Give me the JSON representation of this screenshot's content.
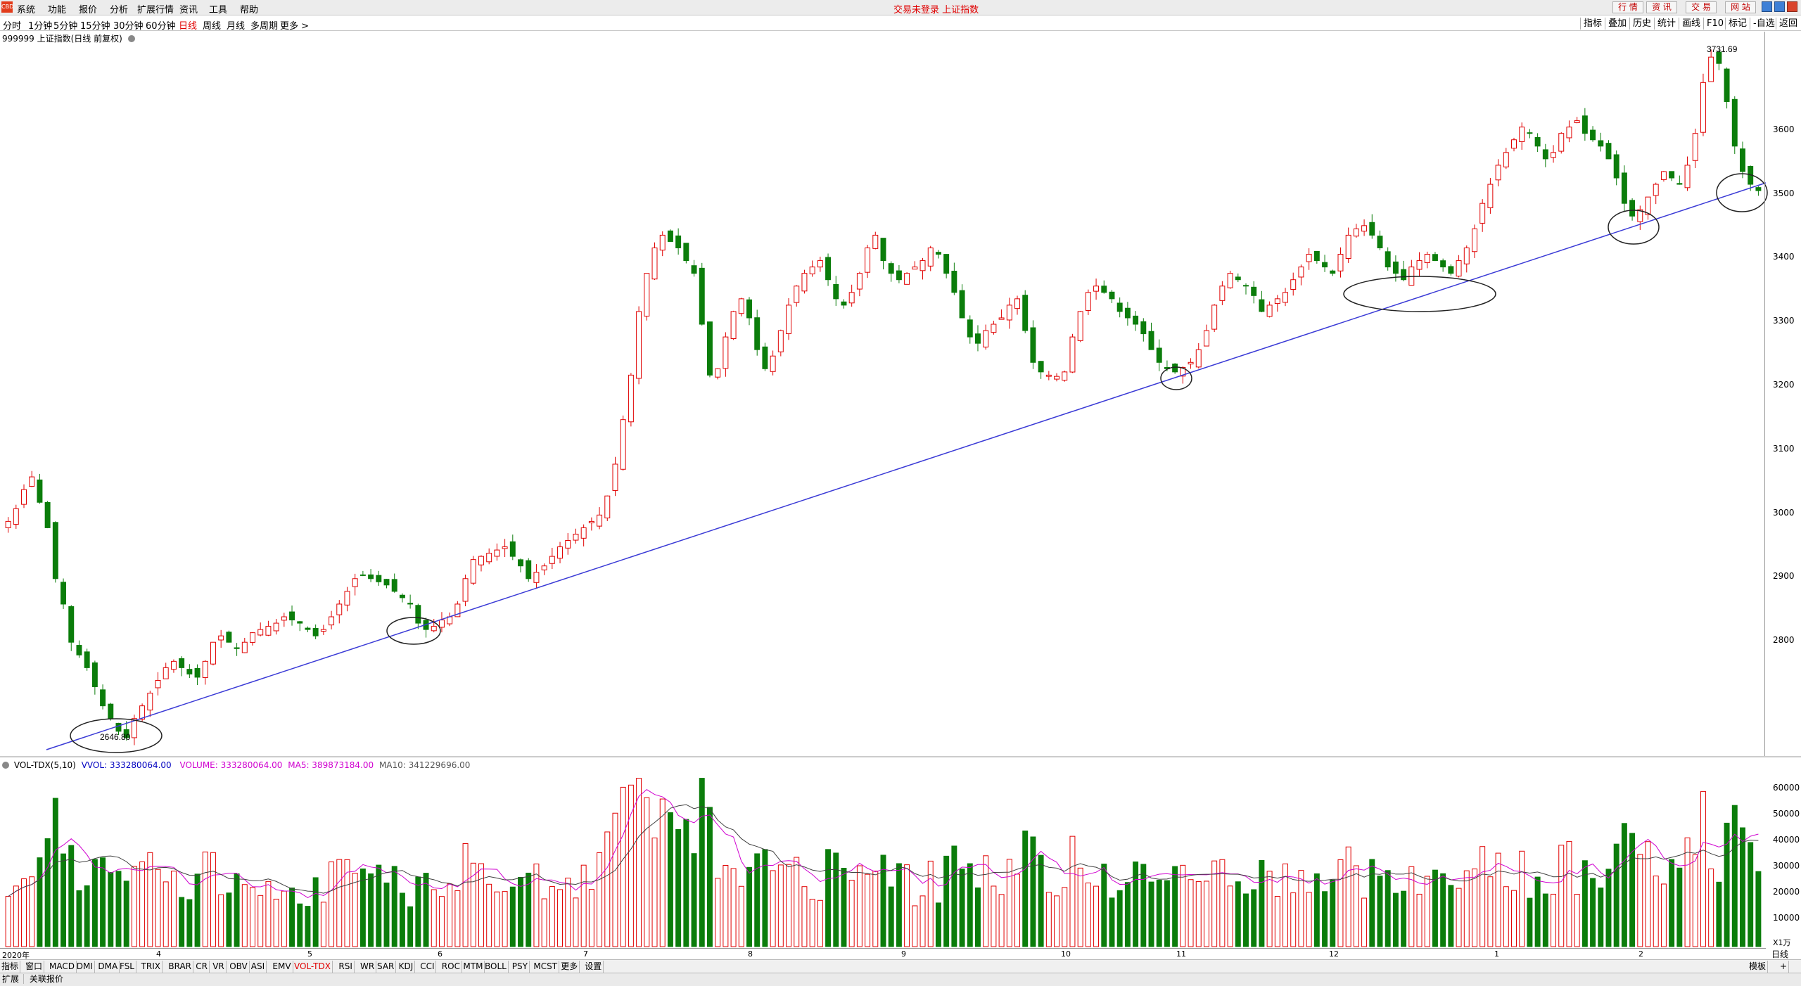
{
  "menu": {
    "logo": "CBD",
    "items": [
      "系统",
      "功能",
      "报价",
      "分析",
      "扩展行情",
      "资讯",
      "工具",
      "帮助"
    ],
    "title": "交易未登录  上证指数"
  },
  "topbuttons": [
    "行 情",
    "资 讯",
    "交 易",
    "网 站"
  ],
  "periods": [
    "分时",
    "1分钟",
    "5分钟",
    "15分钟",
    "30分钟",
    "60分钟",
    "日线",
    "周线",
    "月线",
    "多周期",
    "更多 >"
  ],
  "active_period": "日线",
  "rightbuttons": [
    "指标",
    "叠加",
    "历史",
    "统计",
    "画线",
    "F10",
    "标记",
    "-自选",
    "返回"
  ],
  "chart_title": "999999 上证指数(日线 前复权)",
  "high_label": "3731.69",
  "low_label": "2646.80",
  "price_ticks": [
    "3600",
    "3500",
    "3400",
    "3300",
    "3200",
    "3100",
    "3000",
    "2900",
    "2800"
  ],
  "vol_header": {
    "name": "VOL-TDX(5,10)",
    "vvol": "VVOL: 333280064.00",
    "volume": "VOLUME: 333280064.00",
    "ma5": "MA5: 389873184.00",
    "ma10": "MA10: 341229696.00"
  },
  "vol_ticks": [
    "60000",
    "50000",
    "40000",
    "30000",
    "20000",
    "10000"
  ],
  "vol_unit": "X1万",
  "time_labels": [
    "2020年",
    "4",
    "5",
    "6",
    "7",
    "8",
    "9",
    "10",
    "11",
    "12",
    "1",
    "2"
  ],
  "period_label": "日线",
  "tabs": [
    "指标",
    "窗口",
    "MACD",
    "DMI",
    "DMA",
    "FSL",
    "TRIX",
    "BRAR",
    "CR",
    "VR",
    "OBV",
    "ASI",
    "EMV",
    "VOL-TDX",
    "RSI",
    "WR",
    "SAR",
    "KDJ",
    "CCI",
    "ROC",
    "MTM",
    "BOLL",
    "PSY",
    "MCST",
    "更多",
    "设置"
  ],
  "active_tab": "VOL-TDX",
  "tab_right": [
    "模板",
    "+"
  ],
  "status": [
    "扩展",
    "关联报价"
  ],
  "colors": {
    "up": "#e00000",
    "down": "#0b7d0b",
    "trend": "#3b3bd6",
    "ma5": "#d000d0",
    "ma10": "#404040"
  },
  "chart_data": {
    "type": "candlestick",
    "ylim": [
      2620,
      3760
    ],
    "closes": [
      2990,
      3010,
      3040,
      3060,
      3020,
      2980,
      2900,
      2860,
      2800,
      2780,
      2760,
      2730,
      2700,
      2680,
      2660,
      2650,
      2680,
      2700,
      2720,
      2740,
      2760,
      2770,
      2760,
      2750,
      2745,
      2770,
      2800,
      2810,
      2800,
      2790,
      2800,
      2815,
      2820,
      2825,
      2830,
      2840,
      2835,
      2830,
      2820,
      2810,
      2820,
      2840,
      2860,
      2880,
      2900,
      2905,
      2900,
      2895,
      2890,
      2880,
      2870,
      2860,
      2830,
      2820,
      2825,
      2835,
      2840,
      2860,
      2900,
      2930,
      2935,
      2940,
      2945,
      2950,
      2935,
      2920,
      2900,
      2910,
      2920,
      2935,
      2950,
      2960,
      2970,
      2980,
      2990,
      3000,
      3030,
      3080,
      3150,
      3220,
      3320,
      3380,
      3420,
      3440,
      3430,
      3420,
      3400,
      3380,
      3300,
      3220,
      3230,
      3280,
      3320,
      3340,
      3310,
      3260,
      3230,
      3250,
      3290,
      3330,
      3360,
      3380,
      3390,
      3400,
      3370,
      3340,
      3330,
      3350,
      3380,
      3420,
      3440,
      3400,
      3380,
      3370,
      3380,
      3390,
      3400,
      3420,
      3410,
      3380,
      3350,
      3310,
      3280,
      3270,
      3290,
      3300,
      3310,
      3330,
      3340,
      3290,
      3240,
      3225,
      3220,
      3218,
      3225,
      3280,
      3320,
      3350,
      3360,
      3350,
      3340,
      3320,
      3310,
      3300,
      3285,
      3260,
      3240,
      3230,
      3225,
      3232,
      3240,
      3260,
      3290,
      3330,
      3360,
      3380,
      3370,
      3360,
      3345,
      3320,
      3330,
      3340,
      3350,
      3370,
      3390,
      3410,
      3400,
      3390,
      3380,
      3410,
      3440,
      3450,
      3455,
      3440,
      3420,
      3390,
      3380,
      3370,
      3390,
      3400,
      3410,
      3400,
      3390,
      3380,
      3400,
      3420,
      3450,
      3490,
      3520,
      3550,
      3570,
      3590,
      3610,
      3600,
      3580,
      3560,
      3570,
      3600,
      3610,
      3620,
      3600,
      3590,
      3580,
      3560,
      3530,
      3490,
      3470,
      3480,
      3500,
      3520,
      3540,
      3530,
      3520,
      3550,
      3600,
      3680,
      3720,
      3710,
      3650,
      3580,
      3540,
      3520,
      3510
    ]
  }
}
